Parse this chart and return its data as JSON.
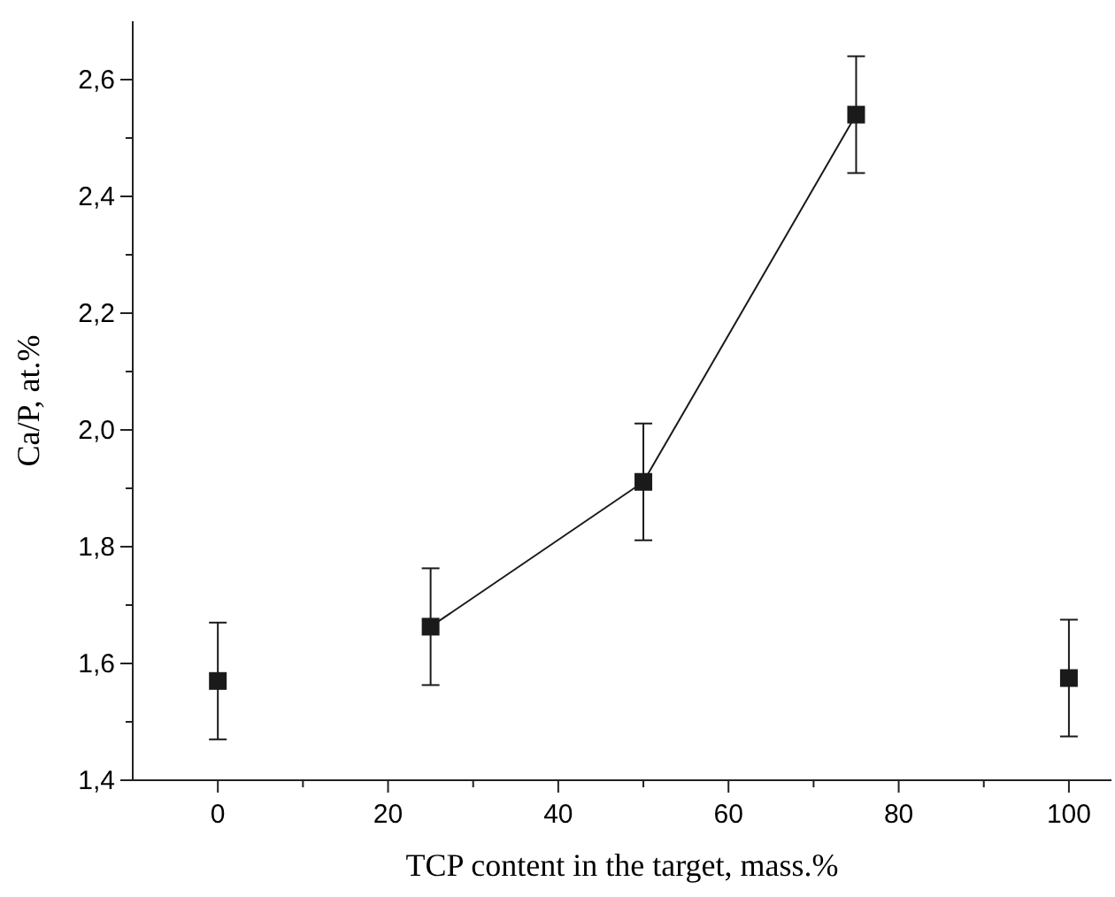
{
  "chart_data": {
    "type": "line",
    "xlabel": "TCP content in the target, mass.%",
    "ylabel": "Ca/P, at.%",
    "x": [
      0,
      25,
      50,
      75,
      100
    ],
    "series": [
      {
        "color": "#1a1a1a",
        "values": [
          null,
          1.663,
          1.911,
          2.54,
          null
        ],
        "errors": [
          null,
          0.1,
          0.1,
          0.1,
          null
        ]
      },
      {
        "type": "scatter",
        "color": "#1a1a1a",
        "values": [
          1.57,
          null,
          null,
          null,
          1.575
        ],
        "errors": [
          0.1,
          null,
          null,
          null,
          0.1
        ]
      }
    ],
    "marker": "square",
    "xlim": [
      -10,
      105
    ],
    "ylim": [
      1.4,
      2.7
    ],
    "xticks": [
      0,
      {
        "value": 10,
        "label": null
      },
      20,
      {
        "value": 30,
        "label": null
      },
      40,
      {
        "value": 50,
        "label": null
      },
      60,
      {
        "value": 70,
        "label": null
      },
      80,
      {
        "value": 90,
        "label": null
      },
      100
    ],
    "yticks": [
      {
        "value": 1.4,
        "label": "1,4"
      },
      {
        "value": 1.5,
        "label": null
      },
      {
        "value": 1.6,
        "label": "1,6"
      },
      {
        "value": 1.7,
        "label": null
      },
      {
        "value": 1.8,
        "label": "1,8"
      },
      {
        "value": 1.9,
        "label": null
      },
      {
        "value": 2.0,
        "label": "2,0"
      },
      {
        "value": 2.1,
        "label": null
      },
      {
        "value": 2.2,
        "label": "2,2"
      },
      {
        "value": 2.3,
        "label": null
      },
      {
        "value": 2.4,
        "label": "2,4"
      },
      {
        "value": 2.5,
        "label": null
      },
      {
        "value": 2.6,
        "label": "2,6"
      }
    ]
  }
}
